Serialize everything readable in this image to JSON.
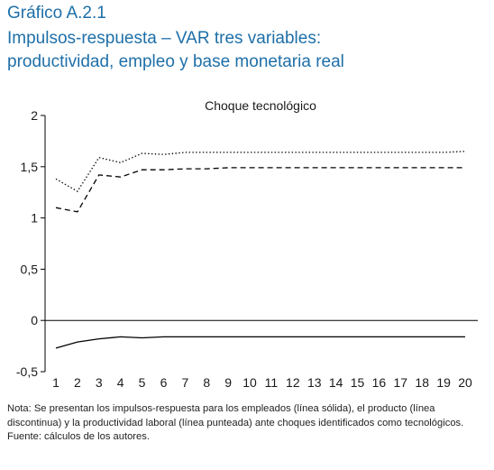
{
  "figure": {
    "number": "Gráfico A.2.1",
    "title_line1": "Impulsos-respuesta – VAR tres variables:",
    "title_line2": "productividad, empleo y base monetaria real"
  },
  "chart_data": {
    "type": "line",
    "title": "Choque tecnológico",
    "xlabel": "",
    "ylabel": "",
    "x": [
      1,
      2,
      3,
      4,
      5,
      6,
      7,
      8,
      9,
      10,
      11,
      12,
      13,
      14,
      15,
      16,
      17,
      18,
      19,
      20
    ],
    "xlim": [
      1,
      20
    ],
    "ylim": [
      -0.5,
      2
    ],
    "y_ticks": [
      -0.5,
      0,
      0.5,
      1,
      1.5,
      2
    ],
    "y_tick_labels": [
      "-0,5",
      "0",
      "0,5",
      "1",
      "1,5",
      "2"
    ],
    "x_tick_labels": [
      "1",
      "2",
      "3",
      "4",
      "5",
      "6",
      "7",
      "8",
      "9",
      "10",
      "11",
      "12",
      "13",
      "14",
      "15",
      "16",
      "17",
      "18",
      "19",
      "20"
    ],
    "grid": false,
    "legend": "none",
    "series": [
      {
        "style": "solid",
        "color": "#000000",
        "values": [
          -0.27,
          -0.21,
          -0.18,
          -0.16,
          -0.17,
          -0.16,
          -0.16,
          -0.16,
          -0.16,
          -0.16,
          -0.16,
          -0.16,
          -0.16,
          -0.16,
          -0.16,
          -0.16,
          -0.16,
          -0.16,
          -0.16,
          -0.16
        ]
      },
      {
        "style": "dashed",
        "color": "#000000",
        "values": [
          1.1,
          1.06,
          1.42,
          1.4,
          1.47,
          1.47,
          1.48,
          1.48,
          1.49,
          1.49,
          1.49,
          1.49,
          1.49,
          1.49,
          1.49,
          1.49,
          1.49,
          1.49,
          1.49,
          1.49
        ]
      },
      {
        "style": "dotted",
        "color": "#000000",
        "values": [
          1.38,
          1.26,
          1.59,
          1.54,
          1.63,
          1.62,
          1.64,
          1.64,
          1.64,
          1.64,
          1.64,
          1.64,
          1.64,
          1.64,
          1.64,
          1.64,
          1.64,
          1.64,
          1.64,
          1.65
        ]
      }
    ]
  },
  "notes": {
    "nota": "Nota: Se presentan los impulsos-respuesta para los empleados (línea sólida), el producto (línea discontinua) y la productividad laboral (línea punteada) ante choques identificados como tecnológicos.",
    "fuente": "Fuente: cálculos de los autores."
  }
}
